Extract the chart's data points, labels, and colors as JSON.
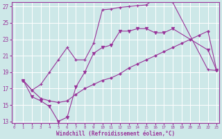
{
  "xlabel": "Windchill (Refroidissement éolien,°C)",
  "bg_color": "#cde8e8",
  "line_color": "#993399",
  "grid_color": "#ffffff",
  "xmin": 0,
  "xmax": 23,
  "ymin": 13,
  "ymax": 27,
  "yticks": [
    13,
    15,
    17,
    19,
    21,
    23,
    25,
    27
  ],
  "xticks": [
    0,
    1,
    2,
    3,
    4,
    5,
    6,
    7,
    8,
    9,
    10,
    11,
    12,
    13,
    14,
    15,
    16,
    17,
    18,
    19,
    20,
    21,
    22,
    23
  ],
  "line1_x": [
    1,
    2,
    3,
    4,
    5,
    6,
    7,
    8,
    9,
    10,
    11,
    12,
    13,
    14,
    15,
    16,
    17,
    18,
    22,
    23
  ],
  "line1_y": [
    18.0,
    16.8,
    17.5,
    19.0,
    20.5,
    22.0,
    20.5,
    20.5,
    22.5,
    26.6,
    26.7,
    26.9,
    27.0,
    27.1,
    27.2,
    28.0,
    28.0,
    27.5,
    19.3,
    19.2
  ],
  "line2_x": [
    1,
    2,
    3,
    4,
    5,
    6,
    7,
    8,
    9,
    10,
    11,
    12,
    13,
    14,
    15,
    16,
    17,
    18,
    19,
    20,
    21,
    22,
    23
  ],
  "line2_y": [
    18.0,
    16.8,
    15.8,
    15.5,
    15.3,
    15.5,
    16.3,
    17.0,
    17.5,
    18.0,
    18.3,
    18.8,
    19.5,
    20.0,
    20.5,
    21.0,
    21.5,
    22.0,
    22.5,
    23.0,
    23.5,
    24.0,
    19.2
  ],
  "line3_x": [
    1,
    2,
    3,
    4,
    5,
    6,
    7,
    8,
    9,
    10,
    11,
    12,
    13,
    14,
    15,
    16,
    17,
    18,
    22,
    23
  ],
  "line3_y": [
    18.0,
    16.0,
    15.5,
    14.8,
    13.0,
    13.5,
    17.2,
    19.0,
    21.3,
    22.0,
    22.3,
    24.0,
    24.0,
    24.3,
    24.3,
    23.8,
    23.8,
    24.3,
    21.7,
    19.2
  ]
}
